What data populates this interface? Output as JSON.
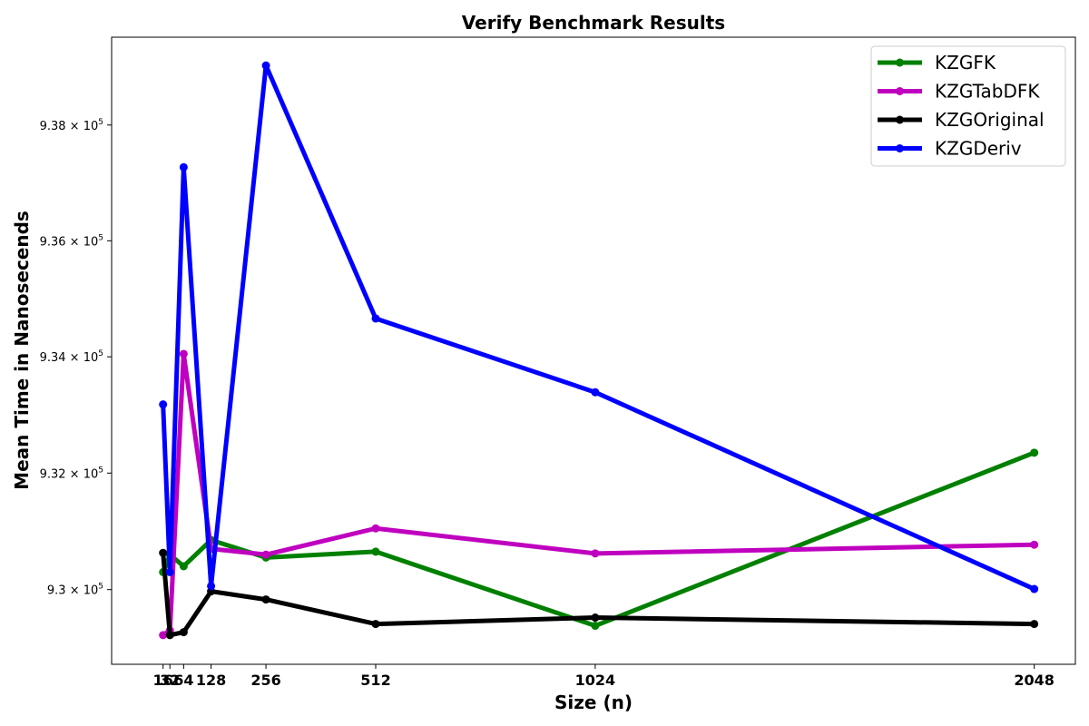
{
  "chart_data": {
    "type": "line",
    "title": "Verify Benchmark Results",
    "xlabel": "Size (n)",
    "ylabel": "Mean Time in Nanosecends",
    "x": [
      16,
      32,
      64,
      128,
      256,
      512,
      1024,
      2048
    ],
    "x_ticks": [
      "16",
      "32",
      "64",
      "128",
      "256",
      "512",
      "1024",
      "2048"
    ],
    "xlim": [
      -104,
      2144
    ],
    "y_ticks": [
      930000,
      932000,
      934000,
      936000,
      938000
    ],
    "y_tick_labels": [
      {
        "mant": "9.3",
        "exp": "5"
      },
      {
        "mant": "9.32",
        "exp": "5"
      },
      {
        "mant": "9.34",
        "exp": "5"
      },
      {
        "mant": "9.36",
        "exp": "5"
      },
      {
        "mant": "9.38",
        "exp": "5"
      }
    ],
    "ylim": [
      928720,
      939520
    ],
    "y_scale": "log",
    "grid": false,
    "legend_position": "top-right",
    "series": [
      {
        "name": "KZGFK",
        "color": "#008000",
        "values": [
          930300,
          930600,
          930400,
          930850,
          930550,
          930650,
          929380,
          932350
        ]
      },
      {
        "name": "KZGTabDFK",
        "color": "#bf00bf",
        "values": [
          929220,
          929300,
          934050,
          930700,
          930600,
          931050,
          930620,
          930770
        ]
      },
      {
        "name": "KZGOriginal",
        "color": "#000000",
        "values": [
          930630,
          929220,
          929270,
          929970,
          929830,
          929410,
          929520,
          929410
        ]
      },
      {
        "name": "KZGDeriv",
        "color": "#0000ff",
        "values": [
          933180,
          930300,
          937270,
          930060,
          939030,
          934660,
          933390,
          930010
        ]
      }
    ]
  }
}
